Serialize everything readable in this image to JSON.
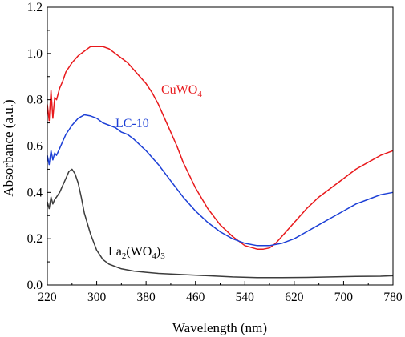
{
  "chart_data": {
    "type": "line",
    "xlabel": "Wavelength (nm)",
    "ylabel": "Absorbance (a.u.)",
    "xlim": [
      220,
      780
    ],
    "ylim": [
      0.0,
      1.2
    ],
    "x_ticks": [
      "220",
      "300",
      "380",
      "460",
      "540",
      "620",
      "700",
      "780"
    ],
    "y_ticks": [
      "0.0",
      "0.2",
      "0.4",
      "0.6",
      "0.8",
      "1.0",
      "1.2"
    ],
    "grid": false,
    "legend": "none",
    "series": [
      {
        "name": "CuWO4",
        "label": {
          "main": "CuWO",
          "sub": "4"
        },
        "color": "#e8191c",
        "x": [
          220,
          223,
          226,
          229,
          232,
          235,
          240,
          245,
          250,
          260,
          270,
          280,
          290,
          300,
          310,
          320,
          330,
          340,
          350,
          360,
          370,
          380,
          390,
          400,
          410,
          420,
          430,
          440,
          460,
          480,
          500,
          520,
          540,
          560,
          570,
          580,
          590,
          600,
          620,
          640,
          660,
          680,
          700,
          720,
          740,
          760,
          780
        ],
        "y": [
          0.78,
          0.71,
          0.84,
          0.72,
          0.81,
          0.8,
          0.85,
          0.88,
          0.92,
          0.96,
          0.99,
          1.01,
          1.03,
          1.03,
          1.03,
          1.02,
          1.0,
          0.98,
          0.96,
          0.93,
          0.9,
          0.87,
          0.83,
          0.78,
          0.72,
          0.66,
          0.6,
          0.53,
          0.42,
          0.33,
          0.26,
          0.21,
          0.17,
          0.155,
          0.155,
          0.16,
          0.18,
          0.21,
          0.27,
          0.33,
          0.38,
          0.42,
          0.46,
          0.5,
          0.53,
          0.56,
          0.58
        ]
      },
      {
        "name": "LC-10",
        "label": {
          "main": "LC-10",
          "sub": ""
        },
        "color": "#1c3fd6",
        "x": [
          220,
          223,
          226,
          229,
          232,
          235,
          240,
          245,
          250,
          260,
          270,
          280,
          290,
          300,
          310,
          320,
          330,
          340,
          350,
          360,
          380,
          400,
          420,
          440,
          460,
          480,
          500,
          520,
          540,
          560,
          580,
          600,
          620,
          640,
          660,
          680,
          700,
          720,
          740,
          760,
          780
        ],
        "y": [
          0.56,
          0.52,
          0.58,
          0.54,
          0.57,
          0.56,
          0.59,
          0.62,
          0.65,
          0.69,
          0.72,
          0.735,
          0.73,
          0.72,
          0.7,
          0.69,
          0.68,
          0.66,
          0.65,
          0.63,
          0.58,
          0.52,
          0.45,
          0.38,
          0.32,
          0.27,
          0.23,
          0.2,
          0.18,
          0.17,
          0.17,
          0.18,
          0.2,
          0.23,
          0.26,
          0.29,
          0.32,
          0.35,
          0.37,
          0.39,
          0.4
        ]
      },
      {
        "name": "La2(WO4)3",
        "label": {
          "main": "La",
          "sub": "2",
          "main2": "(WO",
          "sub2": "4",
          "main3": ")",
          "sub3": "3"
        },
        "color": "#3c3c3c",
        "x": [
          220,
          223,
          226,
          229,
          232,
          235,
          240,
          245,
          250,
          255,
          260,
          265,
          270,
          275,
          280,
          290,
          300,
          310,
          320,
          340,
          360,
          380,
          400,
          440,
          480,
          520,
          560,
          600,
          640,
          680,
          720,
          760,
          780
        ],
        "y": [
          0.36,
          0.33,
          0.38,
          0.35,
          0.37,
          0.38,
          0.4,
          0.43,
          0.46,
          0.49,
          0.5,
          0.48,
          0.44,
          0.38,
          0.31,
          0.22,
          0.15,
          0.11,
          0.09,
          0.07,
          0.06,
          0.055,
          0.05,
          0.045,
          0.04,
          0.035,
          0.032,
          0.032,
          0.033,
          0.035,
          0.037,
          0.038,
          0.04
        ]
      }
    ]
  }
}
